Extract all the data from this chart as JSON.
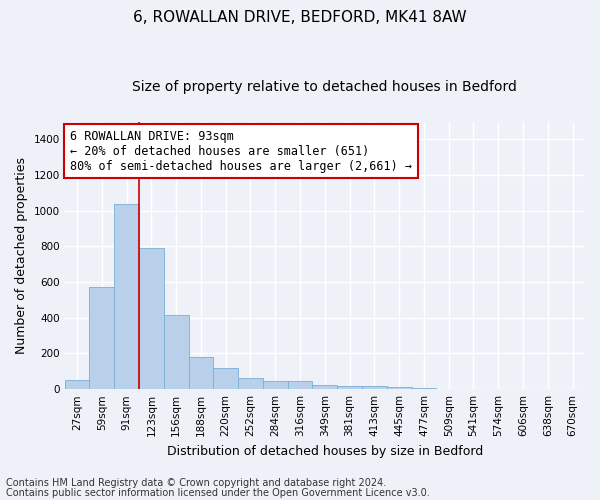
{
  "title_line1": "6, ROWALLAN DRIVE, BEDFORD, MK41 8AW",
  "title_line2": "Size of property relative to detached houses in Bedford",
  "xlabel": "Distribution of detached houses by size in Bedford",
  "ylabel": "Number of detached properties",
  "bar_color": "#b8d0ea",
  "bar_edge_color": "#7aaed4",
  "background_color": "#eef2f8",
  "grid_color": "#ffffff",
  "categories": [
    "27sqm",
    "59sqm",
    "91sqm",
    "123sqm",
    "156sqm",
    "188sqm",
    "220sqm",
    "252sqm",
    "284sqm",
    "316sqm",
    "349sqm",
    "381sqm",
    "413sqm",
    "445sqm",
    "477sqm",
    "509sqm",
    "541sqm",
    "574sqm",
    "606sqm",
    "638sqm",
    "670sqm"
  ],
  "values": [
    50,
    570,
    1040,
    790,
    415,
    180,
    120,
    62,
    48,
    48,
    22,
    18,
    18,
    10,
    8,
    0,
    0,
    0,
    0,
    0,
    0
  ],
  "ylim": [
    0,
    1500
  ],
  "yticks": [
    0,
    200,
    400,
    600,
    800,
    1000,
    1200,
    1400
  ],
  "vline_x_index": 2,
  "vline_color": "#cc0000",
  "annotation_text": "6 ROWALLAN DRIVE: 93sqm\n← 20% of detached houses are smaller (651)\n80% of semi-detached houses are larger (2,661) →",
  "annotation_box_color": "#cc0000",
  "footnote_line1": "Contains HM Land Registry data © Crown copyright and database right 2024.",
  "footnote_line2": "Contains public sector information licensed under the Open Government Licence v3.0.",
  "title_fontsize": 11,
  "subtitle_fontsize": 10,
  "axis_label_fontsize": 9,
  "tick_fontsize": 7.5,
  "annotation_fontsize": 8.5,
  "footnote_fontsize": 7
}
